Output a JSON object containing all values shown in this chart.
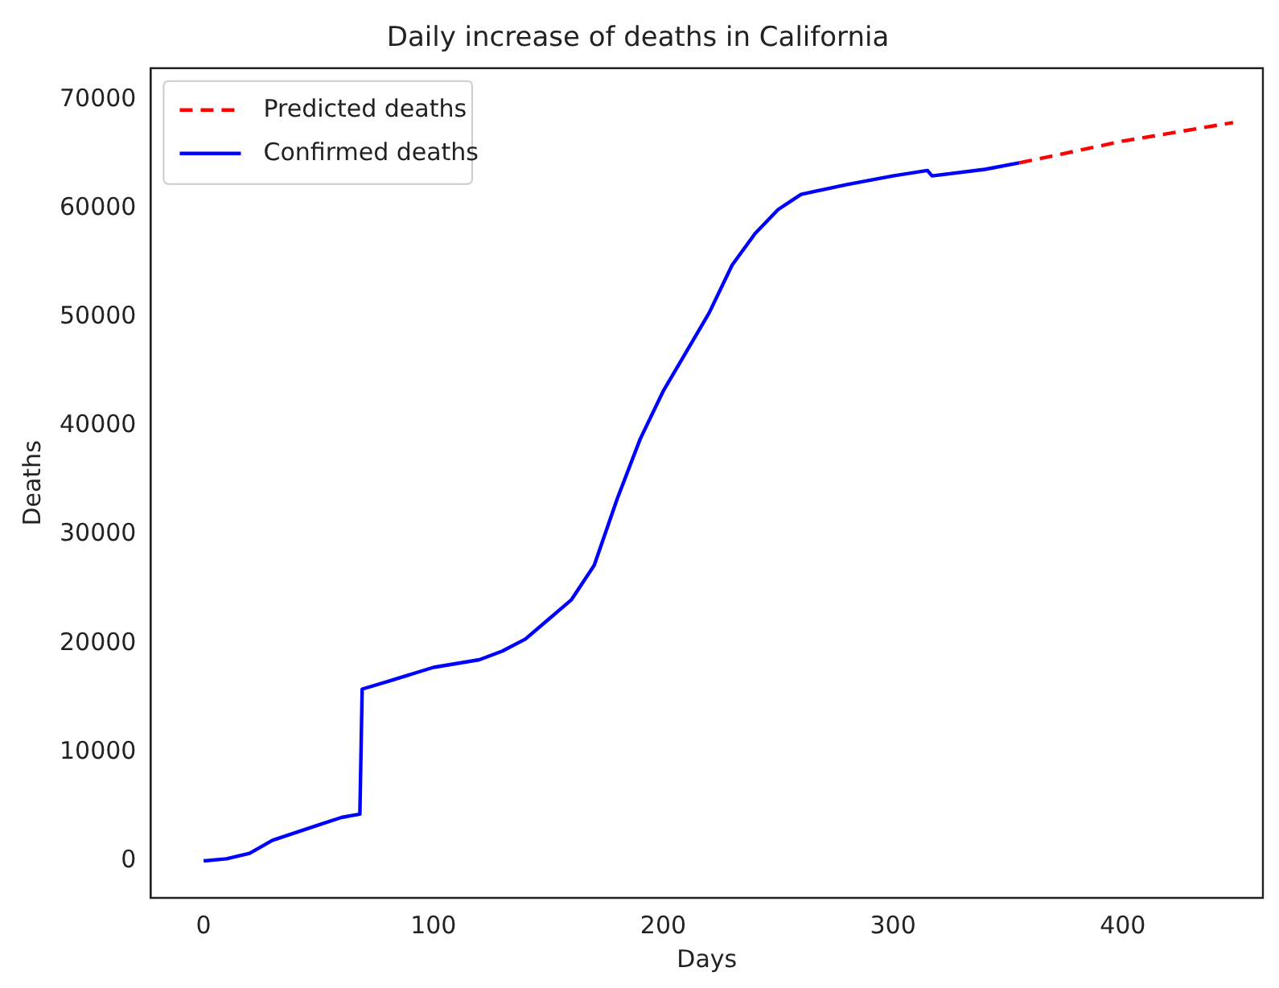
{
  "chart_data": {
    "type": "line",
    "title": "Daily increase of deaths in California",
    "xlabel": "Days",
    "ylabel": "Deaths",
    "xlim": [
      -23,
      461
    ],
    "xticks": [
      0,
      100,
      200,
      300,
      400
    ],
    "ylim": [
      -3400,
      72900
    ],
    "yticks": [
      0,
      10000,
      20000,
      30000,
      40000,
      50000,
      60000,
      70000
    ],
    "grid": false,
    "legend": "top left",
    "series": [
      {
        "name": "Predicted deaths",
        "color": "#ff0000",
        "line_style": "dashed",
        "x": [
          355,
          380,
          400,
          420,
          448
        ],
        "values": [
          64200,
          65300,
          66200,
          66900,
          67900
        ]
      },
      {
        "name": "Confirmed deaths",
        "color": "#0000ff",
        "line_style": "solid",
        "x": [
          0,
          10,
          20,
          30,
          40,
          50,
          60,
          68,
          69,
          80,
          100,
          120,
          130,
          140,
          150,
          160,
          170,
          180,
          190,
          200,
          210,
          220,
          230,
          240,
          250,
          260,
          280,
          300,
          315,
          317,
          340,
          355
        ],
        "values": [
          0,
          200,
          700,
          1900,
          2600,
          3300,
          4000,
          4300,
          15800,
          16500,
          17800,
          18500,
          19300,
          20400,
          22200,
          24000,
          27200,
          33300,
          38800,
          43200,
          46800,
          50400,
          54800,
          57700,
          59900,
          61300,
          62200,
          63000,
          63500,
          63000,
          63600,
          64200
        ]
      }
    ]
  }
}
